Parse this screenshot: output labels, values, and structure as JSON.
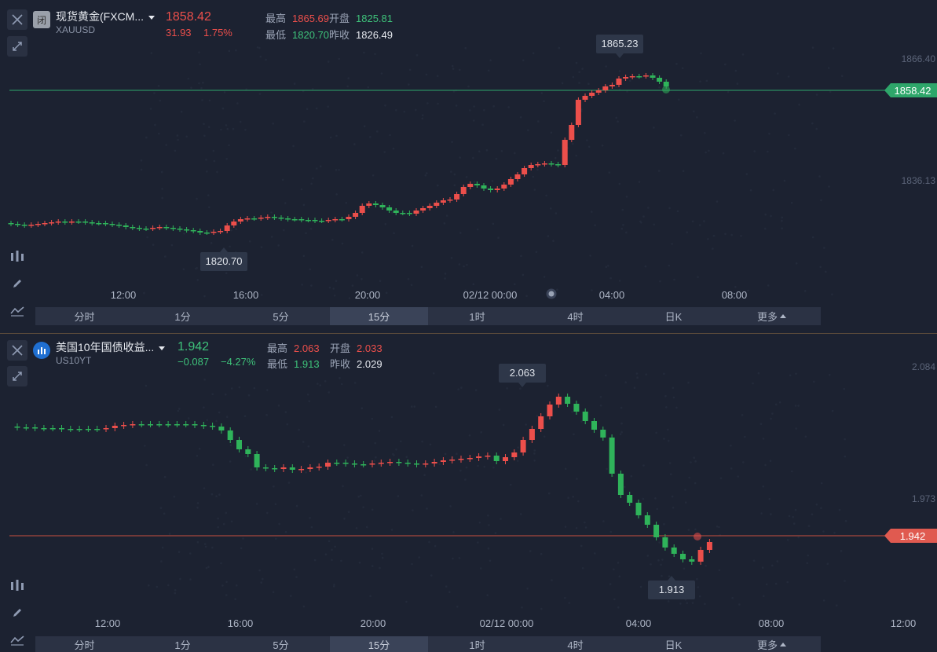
{
  "top": {
    "symbol_badge": "闭",
    "symbol_name": "现货黄金(FXCM...",
    "symbol_code": "XAUUSD",
    "last_price": "1858.42",
    "change": "31.93",
    "change_pct": "1.75%",
    "high_label": "最高",
    "high_value": "1865.69",
    "low_label": "最低",
    "low_value": "1820.70",
    "open_label": "开盘",
    "open_value": "1825.81",
    "prev_label": "昨收",
    "prev_value": "1826.49",
    "price_tag": "1858.42",
    "max_label": "1865.23",
    "min_label": "1820.70",
    "y_ticks": [
      "1866.40",
      "1836.13"
    ],
    "x_ticks": [
      "12:00",
      "16:00",
      "20:00",
      "02/12 00:00",
      "04:00",
      "08:00"
    ],
    "timeframes": [
      "分时",
      "1分",
      "5分",
      "15分",
      "1时",
      "4时",
      "日K",
      "更多"
    ],
    "active_timeframe": "15分",
    "colors": {
      "price_line": "#2ea66a",
      "tag": "#2ea66a"
    }
  },
  "bottom": {
    "symbol_name": "美国10年国债收益...",
    "symbol_code": "US10YT",
    "last_price": "1.942",
    "change": "−0.087",
    "change_pct": "−4.27%",
    "high_label": "最高",
    "high_value": "2.063",
    "low_label": "最低",
    "low_value": "1.913",
    "open_label": "开盘",
    "open_value": "2.033",
    "prev_label": "昨收",
    "prev_value": "2.029",
    "price_tag": "1.942",
    "max_label": "2.063",
    "min_label": "1.913",
    "y_ticks": [
      "2.084",
      "1.973"
    ],
    "x_ticks": [
      "12:00",
      "16:00",
      "20:00",
      "02/12 00:00",
      "04:00",
      "08:00",
      "12:00"
    ],
    "timeframes": [
      "分时",
      "1分",
      "5分",
      "15分",
      "1时",
      "4时",
      "日K",
      "更多"
    ],
    "active_timeframe": "15分",
    "colors": {
      "price_line": "#c9503f",
      "tag": "#e05a50"
    }
  },
  "icons": [
    "close-icon",
    "expand-icon",
    "indicator-icon",
    "draw-pen-icon",
    "line-chart-icon"
  ],
  "colors": {
    "up": "#ec4f4b",
    "down": "#2fb35a",
    "background": "#1c2231"
  }
}
